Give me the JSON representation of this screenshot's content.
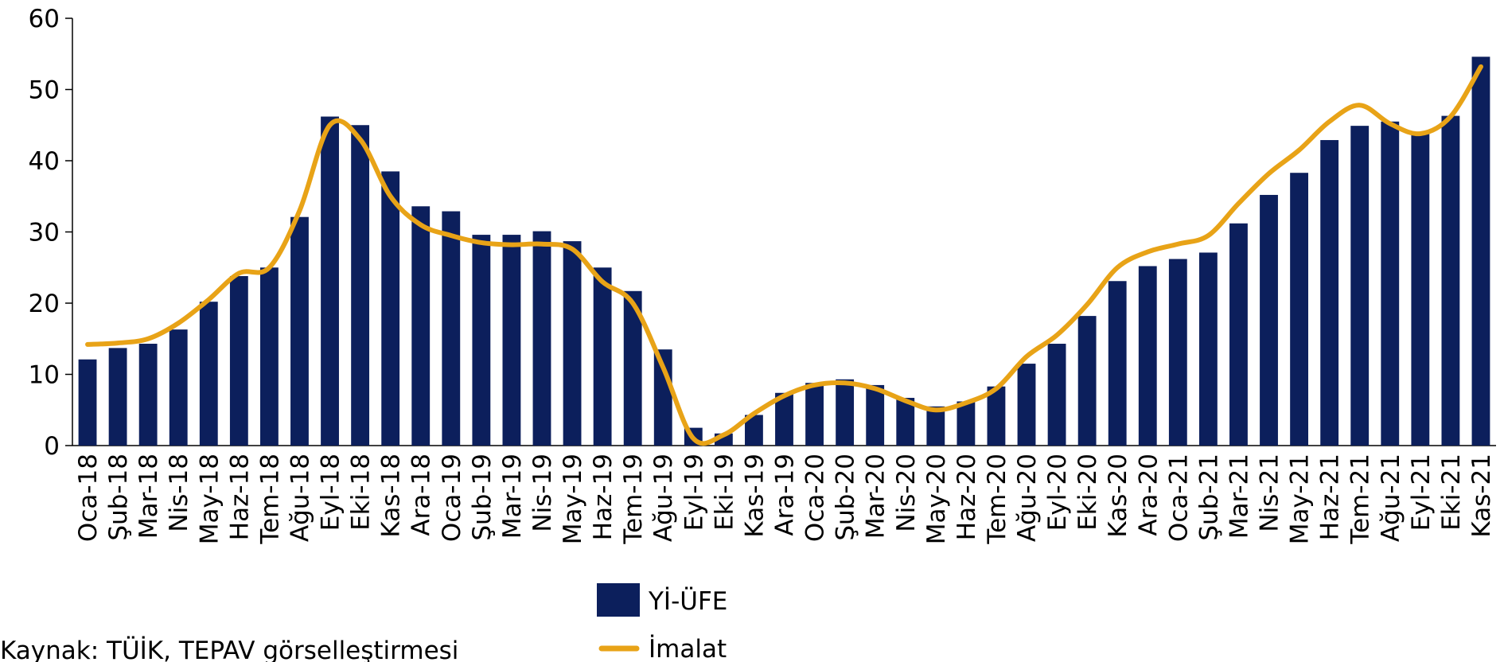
{
  "chart_data": {
    "type": "bar-line",
    "categories": [
      "Oca-18",
      "Şub-18",
      "Mar-18",
      "Nis-18",
      "May-18",
      "Haz-18",
      "Tem-18",
      "Ağu-18",
      "Eyl-18",
      "Eki-18",
      "Kas-18",
      "Ara-18",
      "Oca-19",
      "Şub-19",
      "Mar-19",
      "Nis-19",
      "May-19",
      "Haz-19",
      "Tem-19",
      "Ağu-19",
      "Eyl-19",
      "Eki-19",
      "Kas-19",
      "Ara-19",
      "Oca-20",
      "Şub-20",
      "Mar-20",
      "Nis-20",
      "May-20",
      "Haz-20",
      "Tem-20",
      "Ağu-20",
      "Eyl-20",
      "Eki-20",
      "Kas-20",
      "Ara-20",
      "Oca-21",
      "Şub-21",
      "Mar-21",
      "Nis-21",
      "May-21",
      "Haz-21",
      "Tem-21",
      "Ağu-21",
      "Eyl-21",
      "Eki-21",
      "Kas-21"
    ],
    "series": [
      {
        "name": "Yİ-ÜFE",
        "type": "bar",
        "color": "#0c1f5c",
        "values": [
          12.1,
          13.7,
          14.3,
          16.3,
          20.2,
          23.8,
          25.0,
          32.1,
          46.2,
          45.0,
          38.5,
          33.6,
          32.9,
          29.6,
          29.6,
          30.1,
          28.7,
          25.0,
          21.7,
          13.5,
          2.5,
          1.7,
          4.3,
          7.4,
          8.8,
          9.3,
          8.5,
          6.7,
          5.5,
          6.2,
          8.3,
          11.5,
          14.3,
          18.2,
          23.1,
          25.2,
          26.2,
          27.1,
          31.2,
          35.2,
          38.3,
          42.9,
          44.9,
          45.5,
          43.9,
          46.3,
          54.6
        ]
      },
      {
        "name": "İmalat",
        "type": "line",
        "color": "#e8a317",
        "values": [
          14.2,
          14.4,
          15.0,
          17.2,
          20.5,
          24.2,
          25.0,
          33.0,
          45.0,
          43.0,
          35.0,
          31.0,
          29.5,
          28.5,
          28.2,
          28.3,
          27.6,
          23.0,
          20.0,
          11.0,
          1.0,
          1.5,
          4.5,
          7.0,
          8.5,
          8.8,
          8.0,
          6.3,
          5.0,
          6.0,
          8.0,
          12.5,
          15.5,
          19.8,
          25.0,
          27.2,
          28.3,
          29.5,
          34.0,
          38.2,
          41.5,
          45.5,
          47.8,
          45.2,
          43.8,
          46.2,
          53.2
        ]
      }
    ],
    "ylim": [
      0,
      60
    ],
    "yticks": [
      0,
      10,
      20,
      30,
      40,
      50,
      60
    ],
    "grid": false,
    "source": "Kaynak: TÜİK, TEPAV görselleştirmesi"
  }
}
